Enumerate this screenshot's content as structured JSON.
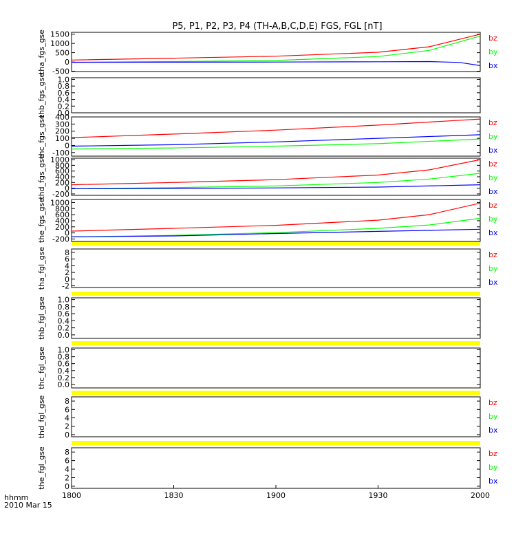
{
  "chart_data": {
    "type": "line",
    "title": "P5, P1, P2, P3, P4 (TH-A,B,C,D,E) FGS, FGL [nT]",
    "x_axis": {
      "ticks": [
        "1800",
        "1830",
        "1900",
        "1930",
        "2000"
      ],
      "label_line1": "hhmm",
      "label_line2": "2010 Mar 15",
      "range": [
        "18:00",
        "20:00"
      ]
    },
    "panels": [
      {
        "ylabel": "tha_fgs_gse",
        "ticks": [
          "1500",
          "1000",
          "500",
          "0",
          "-500"
        ],
        "ylim": [
          -520,
          1600
        ],
        "legend": [
          "bz",
          "by",
          "bx"
        ],
        "series": [
          {
            "name": "bz",
            "color": "#ff0000",
            "x": [
              0,
              30,
              60,
              90,
              105,
              120
            ],
            "values": [
              100,
              200,
              310,
              520,
              820,
              1500
            ]
          },
          {
            "name": "by",
            "color": "#00ff00",
            "x": [
              0,
              30,
              60,
              90,
              105,
              120
            ],
            "values": [
              -10,
              20,
              80,
              290,
              620,
              1400
            ]
          },
          {
            "name": "bx",
            "color": "#0000ff",
            "x": [
              0,
              30,
              60,
              90,
              105,
              114,
              120
            ],
            "values": [
              -20,
              -15,
              -5,
              10,
              20,
              -30,
              -200
            ]
          }
        ]
      },
      {
        "ylabel": "thb_fgs_gse",
        "ticks": [
          "1.0",
          "0.8",
          "0.6",
          "0.4",
          "0.2",
          "0.0"
        ],
        "ylim": [
          0,
          1.05
        ],
        "legend": [],
        "series": []
      },
      {
        "ylabel": "thc_fgs_gse",
        "ticks": [
          "400",
          "300",
          "200",
          "100",
          "0",
          "-100"
        ],
        "ylim": [
          -150,
          400
        ],
        "legend": [
          "bz",
          "by",
          "bx"
        ],
        "series": [
          {
            "name": "bz",
            "color": "#ff0000",
            "x": [
              0,
              30,
              60,
              90,
              120
            ],
            "values": [
              110,
              160,
              215,
              285,
              370
            ]
          },
          {
            "name": "by",
            "color": "#00ff00",
            "x": [
              0,
              30,
              60,
              90,
              120
            ],
            "values": [
              -50,
              -35,
              -10,
              25,
              90
            ]
          },
          {
            "name": "bx",
            "color": "#0000ff",
            "x": [
              0,
              30,
              60,
              90,
              120
            ],
            "values": [
              -10,
              10,
              50,
              100,
              150
            ]
          }
        ]
      },
      {
        "ylabel": "thd_fgs_gse",
        "ticks": [
          "1000",
          "800",
          "600",
          "400",
          "200",
          "0",
          "-200"
        ],
        "ylim": [
          -250,
          1050
        ],
        "legend": [
          "bz",
          "by",
          "bx"
        ],
        "series": [
          {
            "name": "bz",
            "color": "#ff0000",
            "x": [
              0,
              30,
              60,
              90,
              105,
              120
            ],
            "values": [
              120,
              200,
              300,
              460,
              640,
              1000
            ]
          },
          {
            "name": "by",
            "color": "#00ff00",
            "x": [
              0,
              30,
              60,
              90,
              105,
              120
            ],
            "values": [
              -20,
              20,
              80,
              200,
              320,
              520
            ]
          },
          {
            "name": "bx",
            "color": "#0000ff",
            "x": [
              0,
              30,
              60,
              90,
              120
            ],
            "values": [
              -20,
              -10,
              10,
              40,
              120
            ]
          }
        ]
      },
      {
        "ylabel": "the_fgs_gse",
        "ticks": [
          "1000",
          "800",
          "600",
          "400",
          "200",
          "0",
          "-200"
        ],
        "ylim": [
          -280,
          1100
        ],
        "legend": [
          "bz",
          "by",
          "bx"
        ],
        "series": [
          {
            "name": "bz",
            "color": "#ff0000",
            "x": [
              0,
              30,
              60,
              90,
              105,
              120
            ],
            "values": [
              60,
              150,
              250,
              420,
              600,
              980
            ]
          },
          {
            "name": "by",
            "color": "#00ff00",
            "x": [
              0,
              30,
              60,
              90,
              105,
              120
            ],
            "values": [
              -130,
              -80,
              10,
              150,
              260,
              480
            ]
          },
          {
            "name": "bx",
            "color": "#0000ff",
            "x": [
              0,
              30,
              60,
              90,
              120
            ],
            "values": [
              -130,
              -100,
              -20,
              50,
              120
            ]
          }
        ]
      },
      {
        "ylabel": "tha_fgl_gse",
        "ticks": [
          "8",
          "6",
          "4",
          "2",
          "0",
          "-2"
        ],
        "ylim": [
          -2.5,
          9
        ],
        "legend": [
          "bz",
          "by",
          "bx"
        ],
        "series": []
      },
      {
        "ylabel": "thb_fgl_gse",
        "ticks": [
          "1.0",
          "0.8",
          "0.6",
          "0.4",
          "0.2",
          "0.0"
        ],
        "ylim": [
          -0.1,
          1.05
        ],
        "legend": [],
        "series": []
      },
      {
        "ylabel": "thc_fgl_gse",
        "ticks": [
          "1.0",
          "0.8",
          "0.6",
          "0.4",
          "0.2",
          "0.0"
        ],
        "ylim": [
          -0.1,
          1.05
        ],
        "legend": [],
        "series": []
      },
      {
        "ylabel": "thd_fgl_gse",
        "ticks": [
          "8",
          "6",
          "4",
          "2",
          "0"
        ],
        "ylim": [
          -0.5,
          9
        ],
        "legend": [
          "bz",
          "by",
          "bx"
        ],
        "series": []
      },
      {
        "ylabel": "the_fgl_gse",
        "ticks": [
          "8",
          "6",
          "4",
          "2",
          "0"
        ],
        "ylim": [
          -0.5,
          9
        ],
        "legend": [
          "bz",
          "by",
          "bx"
        ],
        "series": []
      }
    ],
    "legend_placement": "right of each panel",
    "grid": false
  },
  "colors": {
    "bz": "#ff0000",
    "by": "#00ff00",
    "bx": "#0000ff",
    "separator": "#ffff00",
    "axis": "#000000"
  }
}
